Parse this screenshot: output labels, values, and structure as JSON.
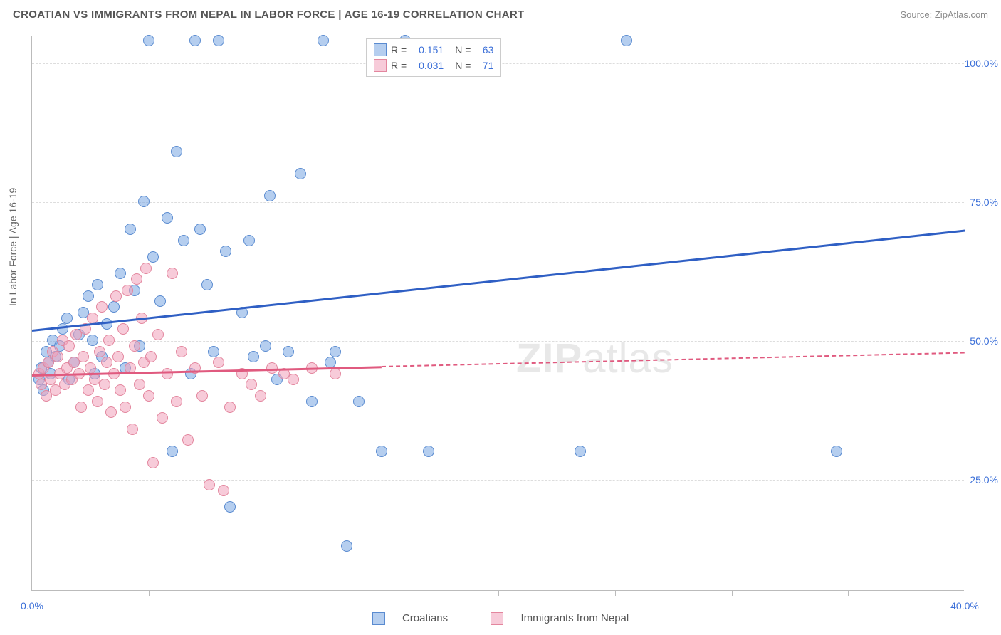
{
  "header": {
    "title": "CROATIAN VS IMMIGRANTS FROM NEPAL IN LABOR FORCE | AGE 16-19 CORRELATION CHART",
    "source": "Source: ZipAtlas.com"
  },
  "axes": {
    "ylabel": "In Labor Force | Age 16-19",
    "xlim": [
      0,
      40
    ],
    "ylim": [
      5,
      105
    ],
    "yticks": [
      {
        "v": 25,
        "label": "25.0%"
      },
      {
        "v": 50,
        "label": "50.0%"
      },
      {
        "v": 75,
        "label": "75.0%"
      },
      {
        "v": 100,
        "label": "100.0%"
      }
    ],
    "xtick_marks": [
      5,
      10,
      15,
      20,
      25,
      30,
      35,
      40
    ],
    "xlabels": [
      {
        "v": 0,
        "label": "0.0%"
      },
      {
        "v": 40,
        "label": "40.0%"
      }
    ],
    "tick_color": "#3b6fd8",
    "grid_color": "#dddddd"
  },
  "watermark": {
    "bold": "ZIP",
    "rest": "atlas"
  },
  "series": [
    {
      "name": "Croatians",
      "fill": "rgba(120,165,225,0.55)",
      "stroke": "#5a8bd0",
      "line_color": "#2f5fc4",
      "R": "0.151",
      "N": "63",
      "trend": {
        "x0": 0,
        "y0": 52,
        "x1": 40,
        "y1": 70,
        "dash_from_x": 40
      },
      "points": [
        [
          0.3,
          43
        ],
        [
          0.4,
          45
        ],
        [
          0.5,
          41
        ],
        [
          0.6,
          48
        ],
        [
          0.7,
          46
        ],
        [
          0.8,
          44
        ],
        [
          0.9,
          50
        ],
        [
          1.0,
          47
        ],
        [
          1.2,
          49
        ],
        [
          1.3,
          52
        ],
        [
          1.5,
          54
        ],
        [
          1.6,
          43
        ],
        [
          1.8,
          46
        ],
        [
          2.0,
          51
        ],
        [
          2.2,
          55
        ],
        [
          2.4,
          58
        ],
        [
          2.6,
          50
        ],
        [
          2.7,
          44
        ],
        [
          2.8,
          60
        ],
        [
          3.0,
          47
        ],
        [
          3.2,
          53
        ],
        [
          3.5,
          56
        ],
        [
          3.8,
          62
        ],
        [
          4.0,
          45
        ],
        [
          4.2,
          70
        ],
        [
          4.4,
          59
        ],
        [
          4.6,
          49
        ],
        [
          4.8,
          75
        ],
        [
          5.0,
          104
        ],
        [
          5.2,
          65
        ],
        [
          5.5,
          57
        ],
        [
          5.8,
          72
        ],
        [
          6.0,
          30
        ],
        [
          6.2,
          84
        ],
        [
          6.5,
          68
        ],
        [
          6.8,
          44
        ],
        [
          7.0,
          104
        ],
        [
          7.2,
          70
        ],
        [
          7.5,
          60
        ],
        [
          7.8,
          48
        ],
        [
          8.0,
          104
        ],
        [
          8.3,
          66
        ],
        [
          8.5,
          20
        ],
        [
          9.0,
          55
        ],
        [
          9.3,
          68
        ],
        [
          9.5,
          47
        ],
        [
          10.0,
          49
        ],
        [
          10.2,
          76
        ],
        [
          10.5,
          43
        ],
        [
          11.0,
          48
        ],
        [
          11.5,
          80
        ],
        [
          12.0,
          39
        ],
        [
          12.5,
          104
        ],
        [
          13.0,
          48
        ],
        [
          13.5,
          13
        ],
        [
          14.0,
          39
        ],
        [
          15.0,
          30
        ],
        [
          16.0,
          104
        ],
        [
          17.0,
          30
        ],
        [
          23.5,
          30
        ],
        [
          25.5,
          104
        ],
        [
          34.5,
          30
        ],
        [
          12.8,
          46
        ]
      ]
    },
    {
      "name": "Immigrants from Nepal",
      "fill": "rgba(240,160,185,0.55)",
      "stroke": "#e3869e",
      "line_color": "#e05a7f",
      "R": "0.031",
      "N": "71",
      "trend": {
        "x0": 0,
        "y0": 44,
        "x1": 40,
        "y1": 48,
        "dash_from_x": 15
      },
      "points": [
        [
          0.3,
          44
        ],
        [
          0.4,
          42
        ],
        [
          0.5,
          45
        ],
        [
          0.6,
          40
        ],
        [
          0.7,
          46
        ],
        [
          0.8,
          43
        ],
        [
          0.9,
          48
        ],
        [
          1.0,
          41
        ],
        [
          1.1,
          47
        ],
        [
          1.2,
          44
        ],
        [
          1.3,
          50
        ],
        [
          1.4,
          42
        ],
        [
          1.5,
          45
        ],
        [
          1.6,
          49
        ],
        [
          1.7,
          43
        ],
        [
          1.8,
          46
        ],
        [
          1.9,
          51
        ],
        [
          2.0,
          44
        ],
        [
          2.1,
          38
        ],
        [
          2.2,
          47
        ],
        [
          2.3,
          52
        ],
        [
          2.4,
          41
        ],
        [
          2.5,
          45
        ],
        [
          2.6,
          54
        ],
        [
          2.7,
          43
        ],
        [
          2.8,
          39
        ],
        [
          2.9,
          48
        ],
        [
          3.0,
          56
        ],
        [
          3.1,
          42
        ],
        [
          3.2,
          46
        ],
        [
          3.3,
          50
        ],
        [
          3.4,
          37
        ],
        [
          3.5,
          44
        ],
        [
          3.6,
          58
        ],
        [
          3.7,
          47
        ],
        [
          3.8,
          41
        ],
        [
          3.9,
          52
        ],
        [
          4.0,
          38
        ],
        [
          4.1,
          59
        ],
        [
          4.2,
          45
        ],
        [
          4.3,
          34
        ],
        [
          4.4,
          49
        ],
        [
          4.5,
          61
        ],
        [
          4.6,
          42
        ],
        [
          4.7,
          54
        ],
        [
          4.8,
          46
        ],
        [
          4.9,
          63
        ],
        [
          5.0,
          40
        ],
        [
          5.1,
          47
        ],
        [
          5.2,
          28
        ],
        [
          5.4,
          51
        ],
        [
          5.6,
          36
        ],
        [
          5.8,
          44
        ],
        [
          6.0,
          62
        ],
        [
          6.2,
          39
        ],
        [
          6.4,
          48
        ],
        [
          6.7,
          32
        ],
        [
          7.0,
          45
        ],
        [
          7.3,
          40
        ],
        [
          7.6,
          24
        ],
        [
          8.0,
          46
        ],
        [
          8.2,
          23
        ],
        [
          8.5,
          38
        ],
        [
          9.0,
          44
        ],
        [
          9.4,
          42
        ],
        [
          9.8,
          40
        ],
        [
          10.3,
          45
        ],
        [
          10.8,
          44
        ],
        [
          11.2,
          43
        ],
        [
          12.0,
          45
        ],
        [
          13.0,
          44
        ]
      ]
    }
  ],
  "legend_top": {
    "r_label": "R =",
    "n_label": "N ="
  },
  "legend_bottom": {
    "items": [
      "Croatians",
      "Immigrants from Nepal"
    ]
  }
}
